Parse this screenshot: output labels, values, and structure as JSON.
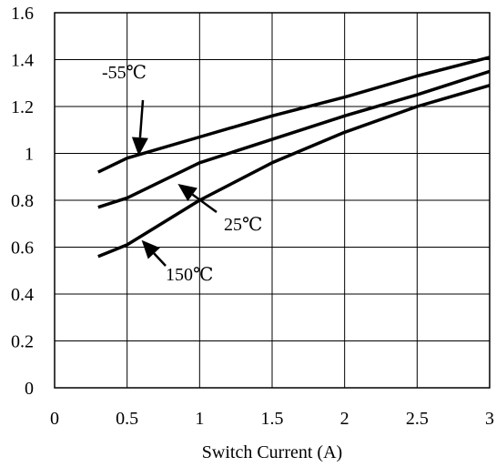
{
  "chart_data": {
    "type": "line",
    "title": "",
    "xlabel": "Switch Current (A)",
    "ylabel": "",
    "xlim": [
      0,
      3
    ],
    "ylim": [
      0,
      1.6
    ],
    "grid": true,
    "x_ticks": [
      "0",
      "0.5",
      "1",
      "1.5",
      "2",
      "2.5",
      "3"
    ],
    "y_ticks": [
      "0",
      "0.2",
      "0.4",
      "0.6",
      "0.8",
      "1",
      "1.2",
      "1.4",
      "1.6"
    ],
    "series": [
      {
        "name": "-55℃",
        "x": [
          0.3,
          0.5,
          1,
          1.5,
          2,
          2.5,
          3
        ],
        "y": [
          0.92,
          0.98,
          1.07,
          1.16,
          1.24,
          1.33,
          1.41
        ]
      },
      {
        "name": "25℃",
        "x": [
          0.3,
          0.5,
          1,
          1.5,
          2,
          2.5,
          3
        ],
        "y": [
          0.77,
          0.81,
          0.96,
          1.06,
          1.16,
          1.25,
          1.35
        ]
      },
      {
        "name": "150℃",
        "x": [
          0.3,
          0.5,
          1,
          1.5,
          2,
          2.5,
          3
        ],
        "y": [
          0.56,
          0.61,
          0.8,
          0.96,
          1.09,
          1.2,
          1.29
        ]
      }
    ],
    "annotations": [
      {
        "text": "-55℃",
        "points_to_x": 0.58,
        "points_to_y": 0.99
      },
      {
        "text": "25℃",
        "points_to_x": 0.85,
        "points_to_y": 0.87
      },
      {
        "text": "150℃",
        "points_to_x": 0.6,
        "points_to_y": 0.63
      }
    ]
  }
}
